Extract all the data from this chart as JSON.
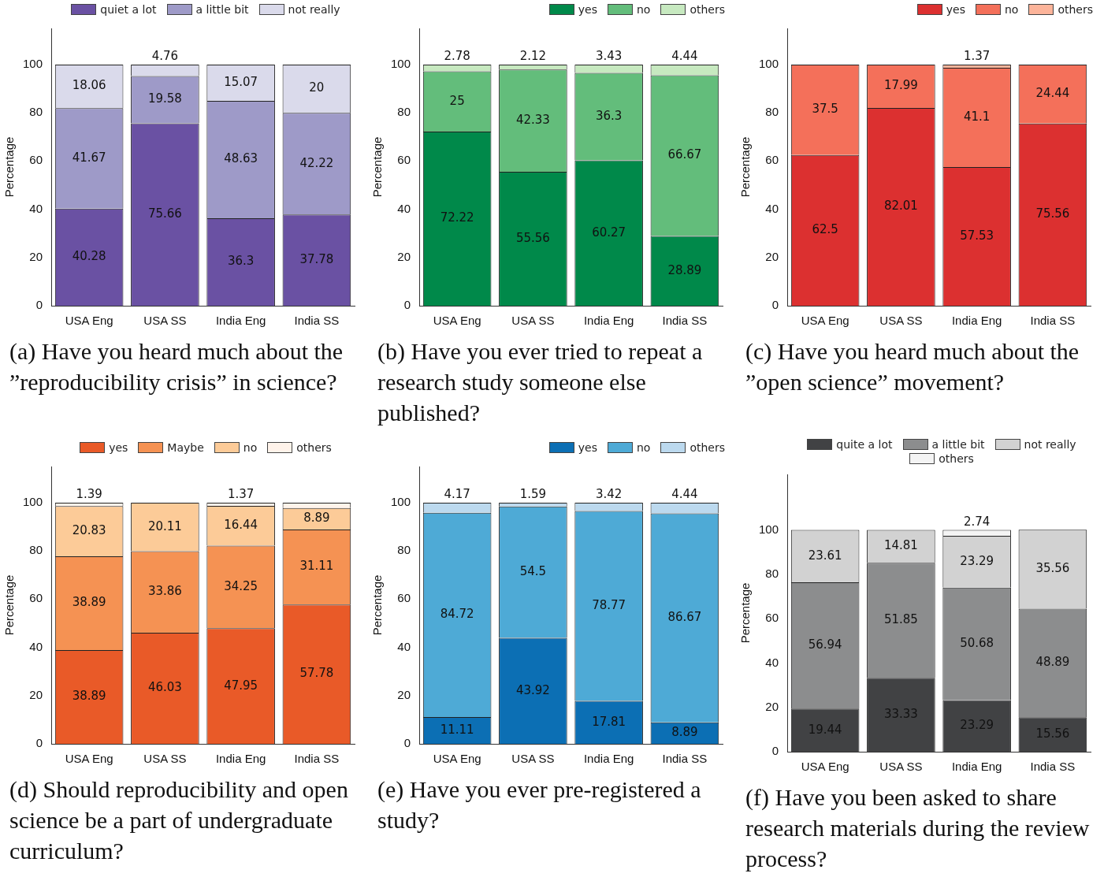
{
  "chart_data": [
    {
      "type": "bar",
      "title": "(a) Have you heard much about the ”reproducibility crisis” in science?",
      "ylabel": "Percentage",
      "categories": [
        "USA Eng",
        "USA SS",
        "India Eng",
        "India SS"
      ],
      "stacked": true,
      "ylim": [
        0,
        115
      ],
      "yticks": [
        0,
        20,
        40,
        60,
        80,
        100
      ],
      "legend": "top",
      "data_labels": true,
      "series": [
        {
          "name": "quiet a lot",
          "color": "#6a51a3",
          "values": [
            40.28,
            75.66,
            36.3,
            37.78
          ]
        },
        {
          "name": "a little bit",
          "color": "#9e9ac8",
          "values": [
            41.67,
            19.58,
            48.63,
            42.22
          ]
        },
        {
          "name": "not really",
          "color": "#dadaeb",
          "values": [
            18.06,
            4.76,
            15.07,
            20
          ]
        }
      ]
    },
    {
      "type": "bar",
      "title": "(b) Have you ever tried to repeat a research study someone else published?",
      "ylabel": "Percentage",
      "categories": [
        "USA Eng",
        "USA SS",
        "India Eng",
        "India SS"
      ],
      "stacked": true,
      "ylim": [
        0,
        115
      ],
      "yticks": [
        0,
        20,
        40,
        60,
        80,
        100
      ],
      "legend": "top right",
      "data_labels": true,
      "series": [
        {
          "name": "yes",
          "color": "#00894a",
          "values": [
            72.22,
            55.56,
            60.27,
            28.89
          ]
        },
        {
          "name": "no",
          "color": "#63bd7b",
          "values": [
            25,
            42.33,
            36.3,
            66.67
          ]
        },
        {
          "name": "others",
          "color": "#c7e9c0",
          "values": [
            2.78,
            2.12,
            3.43,
            4.44
          ]
        }
      ]
    },
    {
      "type": "bar",
      "title": "(c) Have you heard much about the ”open science” movement?",
      "ylabel": "Percentage",
      "categories": [
        "USA Eng",
        "USA SS",
        "India Eng",
        "India SS"
      ],
      "stacked": true,
      "ylim": [
        0,
        115
      ],
      "yticks": [
        0,
        20,
        40,
        60,
        80,
        100
      ],
      "legend": "top right",
      "data_labels": true,
      "series": [
        {
          "name": "yes",
          "color": "#dc3030",
          "values": [
            62.5,
            82.01,
            57.53,
            75.56
          ]
        },
        {
          "name": "no",
          "color": "#f4705a",
          "values": [
            37.5,
            17.99,
            41.1,
            24.44
          ]
        },
        {
          "name": "others",
          "color": "#fcb49a",
          "values": [
            null,
            null,
            1.37,
            null
          ]
        }
      ]
    },
    {
      "type": "bar",
      "title": "(d) Should reproducibility and open science be a part of undergraduate curriculum?",
      "ylabel": "Percentage",
      "categories": [
        "USA Eng",
        "USA SS",
        "India Eng",
        "India SS"
      ],
      "stacked": true,
      "ylim": [
        0,
        115
      ],
      "yticks": [
        0,
        20,
        40,
        60,
        80,
        100
      ],
      "legend": "top",
      "series": [
        {
          "name": "yes",
          "color": "#e95a28",
          "values": [
            38.89,
            46.03,
            47.95,
            57.78
          ],
          "value_labels": [
            "38.89",
            "46.03",
            "47.95",
            "57.78"
          ]
        },
        {
          "name": "Maybe",
          "color": "#f59253",
          "values": [
            38.89,
            33.86,
            34.25,
            31.11
          ],
          "value_labels": [
            "38.89",
            "33.86",
            "34.25",
            "31.11"
          ]
        },
        {
          "name": "no",
          "color": "#fccb98",
          "values": [
            20.83,
            20.11,
            16.44,
            8.89
          ],
          "value_labels": [
            "20.83",
            "20.11",
            "16.44",
            "8.89"
          ]
        },
        {
          "name": "others",
          "color": "#fff3ea",
          "values": [
            1.39,
            null,
            1.37,
            2.2
          ],
          "value_labels": [
            "1.39",
            null,
            "1.37",
            null
          ]
        }
      ]
    },
    {
      "type": "bar",
      "title": "(e) Have you ever pre-registered a study?",
      "ylabel": "Percentage",
      "categories": [
        "USA Eng",
        "USA SS",
        "India Eng",
        "India SS"
      ],
      "stacked": true,
      "ylim": [
        0,
        115
      ],
      "yticks": [
        0,
        20,
        40,
        60,
        80,
        100
      ],
      "legend": "top right",
      "data_labels": true,
      "series": [
        {
          "name": "yes",
          "color": "#0c6fb4",
          "values": [
            11.11,
            43.92,
            17.81,
            8.89
          ]
        },
        {
          "name": "no",
          "color": "#4eaad6",
          "values": [
            84.72,
            54.5,
            78.77,
            86.67
          ]
        },
        {
          "name": "others",
          "color": "#bcd9ee",
          "values": [
            4.17,
            1.59,
            3.42,
            4.44
          ]
        }
      ]
    },
    {
      "type": "bar",
      "title": "(f) Have you been asked to share research materials during the review process?",
      "ylabel": "Percentage",
      "categories": [
        "USA Eng",
        "USA SS",
        "India Eng",
        "India SS"
      ],
      "stacked": true,
      "ylim": [
        0,
        125
      ],
      "yticks": [
        0,
        20,
        40,
        60,
        80,
        100
      ],
      "legend": "top",
      "data_labels": true,
      "series": [
        {
          "name": "quite a lot",
          "color": "#414244",
          "values": [
            19.44,
            33.33,
            23.29,
            15.56
          ]
        },
        {
          "name": "a little bit",
          "color": "#8c8d8e",
          "values": [
            56.94,
            51.85,
            50.68,
            48.89
          ]
        },
        {
          "name": "not really",
          "color": "#d2d2d2",
          "values": [
            23.61,
            14.81,
            23.29,
            35.56
          ]
        },
        {
          "name": "others",
          "color": "#f4f4f4",
          "values": [
            null,
            null,
            2.74,
            null
          ]
        }
      ]
    }
  ]
}
